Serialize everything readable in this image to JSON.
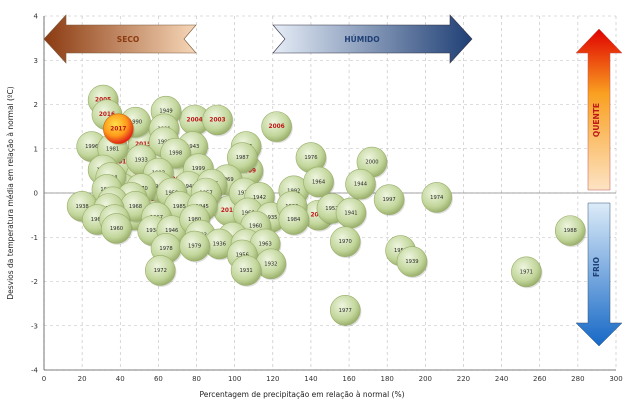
{
  "chart_data": {
    "type": "scatter",
    "xlabel": "Percentagem de precipitação em relação à normal (%)",
    "ylabel": "Desvios da temperatura média em relação à normal (ºC)",
    "xlim": [
      0,
      300
    ],
    "ylim": [
      -4,
      4
    ],
    "xticks": [
      "0",
      "20",
      "40",
      "60",
      "80",
      "100",
      "120",
      "140",
      "160",
      "180",
      "200",
      "220",
      "240",
      "260",
      "280",
      "300"
    ],
    "yticks": [
      "4",
      "3",
      "2",
      "1",
      "0",
      "-1",
      "-2",
      "-3",
      "-4"
    ],
    "grid": "dashed",
    "annotations": {
      "seco": "SECO",
      "humido": "HÚMIDO",
      "quente": "QUENTE",
      "frio": "FRIO"
    },
    "colors": {
      "bubble": "#c2d69b",
      "highlight_text": "#c0191b",
      "dry_arrow": "#8b4513",
      "wet_arrow": "#2a4a7f",
      "hot_arrow": "#e00000",
      "cold_arrow": "#2a7fd4"
    },
    "points": [
      {
        "year": "2017",
        "x": 39,
        "y": 1.45,
        "highlight": true,
        "current": true
      },
      {
        "year": "2005",
        "x": 31,
        "y": 2.1,
        "highlight": true
      },
      {
        "year": "2016",
        "x": 33,
        "y": 1.77,
        "highlight": true
      },
      {
        "year": "2015",
        "x": 52,
        "y": 1.1,
        "highlight": true
      },
      {
        "year": "2004",
        "x": 79,
        "y": 1.65,
        "highlight": true
      },
      {
        "year": "2003",
        "x": 91,
        "y": 1.65,
        "highlight": true
      },
      {
        "year": "2006",
        "x": 122,
        "y": 1.5,
        "highlight": true
      },
      {
        "year": "2013",
        "x": 41,
        "y": 0.7,
        "highlight": true
      },
      {
        "year": "2010",
        "x": 62,
        "y": 0.72,
        "highlight": true
      },
      {
        "year": "2002",
        "x": 51,
        "y": 0.4,
        "highlight": true
      },
      {
        "year": "2011",
        "x": 41,
        "y": 0.1,
        "highlight": true
      },
      {
        "year": "2001",
        "x": 69,
        "y": 0.3,
        "highlight": true
      },
      {
        "year": "2012",
        "x": 56,
        "y": -0.15,
        "highlight": true
      },
      {
        "year": "2008",
        "x": 47,
        "y": -0.5,
        "highlight": true
      },
      {
        "year": "2009",
        "x": 107,
        "y": 0.5,
        "highlight": true
      },
      {
        "year": "2014",
        "x": 97,
        "y": -0.4,
        "highlight": true
      },
      {
        "year": "2007",
        "x": 144,
        "y": -0.5,
        "highlight": true
      },
      {
        "year": "1949",
        "x": 64,
        "y": 1.85
      },
      {
        "year": "1990",
        "x": 48,
        "y": 1.6
      },
      {
        "year": "1991",
        "x": 63,
        "y": 1.45
      },
      {
        "year": "1995",
        "x": 63,
        "y": 1.15
      },
      {
        "year": "1996",
        "x": 25,
        "y": 1.05
      },
      {
        "year": "1981",
        "x": 36,
        "y": 1.0
      },
      {
        "year": "1943",
        "x": 78,
        "y": 1.05
      },
      {
        "year": "1998",
        "x": 69,
        "y": 0.9
      },
      {
        "year": "1961",
        "x": 106,
        "y": 1.05
      },
      {
        "year": "1987",
        "x": 104,
        "y": 0.8
      },
      {
        "year": "1933",
        "x": 51,
        "y": 0.75
      },
      {
        "year": "1993",
        "x": 60,
        "y": 0.45
      },
      {
        "year": "1999",
        "x": 81,
        "y": 0.55
      },
      {
        "year": "1937",
        "x": 31,
        "y": 0.52
      },
      {
        "year": "1994",
        "x": 35,
        "y": 0.35
      },
      {
        "year": "1962",
        "x": 60,
        "y": 0.15
      },
      {
        "year": "1970",
        "x": 51,
        "y": 0.1
      },
      {
        "year": "1947",
        "x": 33,
        "y": 0.08
      },
      {
        "year": "1940",
        "x": 76,
        "y": 0.15
      },
      {
        "year": "1969",
        "x": 96,
        "y": 0.3
      },
      {
        "year": "1955",
        "x": 88,
        "y": 0.2
      },
      {
        "year": "1957",
        "x": 85,
        "y": 0.0
      },
      {
        "year": "1959",
        "x": 67,
        "y": 0.0
      },
      {
        "year": "1948",
        "x": 46,
        "y": -0.1
      },
      {
        "year": "1964",
        "x": 36,
        "y": -0.2
      },
      {
        "year": "1968",
        "x": 48,
        "y": -0.3
      },
      {
        "year": "1938",
        "x": 20,
        "y": -0.3
      },
      {
        "year": "1953",
        "x": 34,
        "y": -0.35
      },
      {
        "year": "1985",
        "x": 71,
        "y": -0.3
      },
      {
        "year": "1945",
        "x": 83,
        "y": -0.3
      },
      {
        "year": "1973",
        "x": 105,
        "y": 0.0
      },
      {
        "year": "1942",
        "x": 113,
        "y": -0.1
      },
      {
        "year": "1965",
        "x": 28,
        "y": -0.6
      },
      {
        "year": "1975",
        "x": 37,
        "y": -0.6
      },
      {
        "year": "1967",
        "x": 59,
        "y": -0.55
      },
      {
        "year": "1960",
        "x": 38,
        "y": -0.8
      },
      {
        "year": "1934",
        "x": 57,
        "y": -0.85
      },
      {
        "year": "1946",
        "x": 67,
        "y": -0.85
      },
      {
        "year": "1980",
        "x": 79,
        "y": -0.6
      },
      {
        "year": "1966",
        "x": 107,
        "y": -0.45
      },
      {
        "year": "1935",
        "x": 119,
        "y": -0.55
      },
      {
        "year": "1960b",
        "label": "1960",
        "x": 111,
        "y": -0.75
      },
      {
        "year": "1982",
        "x": 82,
        "y": -0.95
      },
      {
        "year": "1983",
        "x": 99,
        "y": -1.0
      },
      {
        "year": "1936",
        "x": 92,
        "y": -1.15
      },
      {
        "year": "1953b",
        "label": "1953",
        "x": 106,
        "y": -1.15
      },
      {
        "year": "1963",
        "x": 116,
        "y": -1.15
      },
      {
        "year": "1978",
        "x": 64,
        "y": -1.25
      },
      {
        "year": "1979",
        "x": 79,
        "y": -1.2
      },
      {
        "year": "1956",
        "x": 104,
        "y": -1.4
      },
      {
        "year": "1992",
        "x": 131,
        "y": 0.05
      },
      {
        "year": "1976",
        "x": 140,
        "y": 0.8
      },
      {
        "year": "1964b",
        "label": "1964",
        "x": 144,
        "y": 0.25
      },
      {
        "year": "1950",
        "x": 130,
        "y": -0.3
      },
      {
        "year": "1984",
        "x": 131,
        "y": -0.6
      },
      {
        "year": "1952",
        "x": 151,
        "y": -0.35
      },
      {
        "year": "1941",
        "x": 161,
        "y": -0.45
      },
      {
        "year": "2000",
        "x": 172,
        "y": 0.7
      },
      {
        "year": "1944",
        "x": 166,
        "y": 0.2
      },
      {
        "year": "1997",
        "x": 181,
        "y": -0.15
      },
      {
        "year": "1974",
        "x": 206,
        "y": -0.1
      },
      {
        "year": "1970b",
        "label": "1970",
        "x": 158,
        "y": -1.1
      },
      {
        "year": "1958",
        "x": 187,
        "y": -1.3
      },
      {
        "year": "1939",
        "x": 193,
        "y": -1.55
      },
      {
        "year": "1932",
        "x": 119,
        "y": -1.6
      },
      {
        "year": "1931",
        "x": 106,
        "y": -1.75
      },
      {
        "year": "1972",
        "x": 61,
        "y": -1.75
      },
      {
        "year": "1977",
        "x": 158,
        "y": -2.65
      },
      {
        "year": "1971",
        "x": 253,
        "y": -1.78
      },
      {
        "year": "1988",
        "x": 276,
        "y": -0.85
      }
    ]
  }
}
